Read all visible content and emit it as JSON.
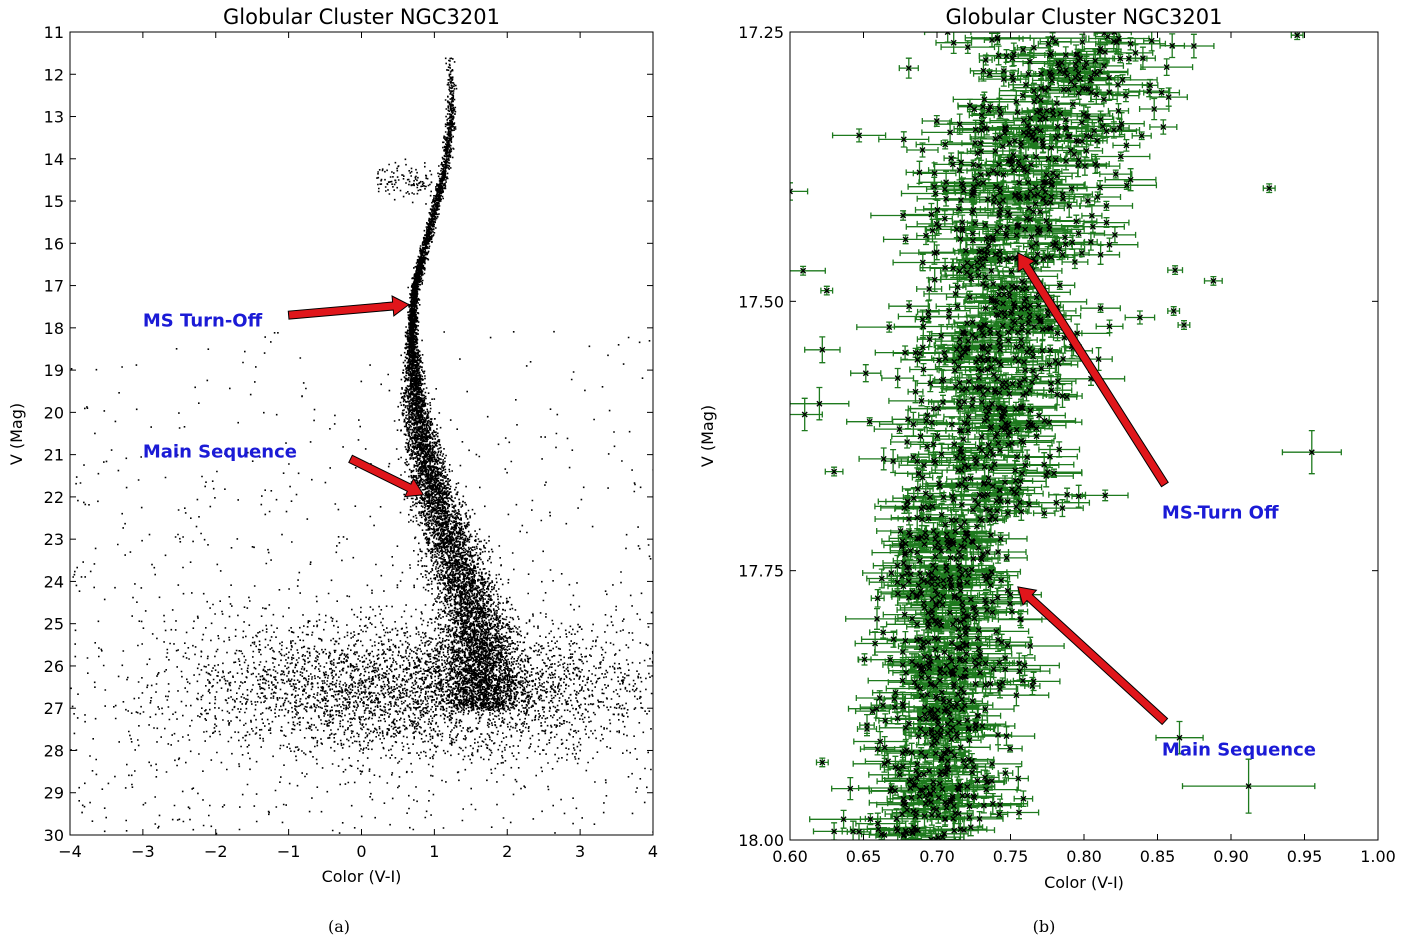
{
  "chart_data": [
    {
      "type": "scatter",
      "title": "Globular Cluster NGC3201",
      "xlabel": "Color (V-I)",
      "ylabel": "V (Mag)",
      "xlim": [
        -4,
        4
      ],
      "ylim": [
        30,
        11
      ],
      "y_inverted": true,
      "x_ticks": [
        "−4",
        "−3",
        "−2",
        "−1",
        "0",
        "1",
        "2",
        "3",
        "4"
      ],
      "y_ticks": [
        "11",
        "12",
        "13",
        "14",
        "15",
        "16",
        "17",
        "18",
        "19",
        "20",
        "21",
        "22",
        "23",
        "24",
        "25",
        "26",
        "27",
        "28",
        "29",
        "30"
      ],
      "marker_color": "#000000",
      "annotations": [
        {
          "text": "MS Turn-Off",
          "label_x": -3.0,
          "label_y": 17.8,
          "arrow_from": [
            -1.0,
            17.7
          ],
          "arrow_to": [
            0.65,
            17.45
          ]
        },
        {
          "text": "Main Sequence",
          "label_x": -3.0,
          "label_y": 20.9,
          "arrow_from": [
            -0.15,
            21.1
          ],
          "arrow_to": [
            0.85,
            21.95
          ]
        }
      ],
      "ridge_line": {
        "x": [
          1.22,
          1.22,
          1.13,
          0.95,
          0.8,
          0.72,
          0.7,
          0.68,
          0.7,
          0.75,
          0.85,
          1.0,
          1.2,
          1.4,
          1.55,
          1.65,
          1.7
        ],
        "y": [
          11.5,
          13.0,
          14.3,
          15.5,
          16.5,
          17.1,
          17.6,
          18.2,
          19.0,
          20.0,
          21.0,
          22.0,
          23.0,
          24.0,
          25.0,
          26.0,
          27.0
        ]
      },
      "horizontal_branch": {
        "x": [
          0.2,
          0.95
        ],
        "y": [
          14.5,
          14.5
        ]
      },
      "field_population": {
        "center_x": 0.8,
        "center_y": 26.5,
        "spread_x": 1.6,
        "spread_y": 0.8
      },
      "caption": "(a)"
    },
    {
      "type": "scatter",
      "title": "Globular Cluster NGC3201",
      "xlabel": "Color (V-I)",
      "ylabel": "V (Mag)",
      "xlim": [
        0.6,
        1.0
      ],
      "ylim": [
        18.0,
        17.25
      ],
      "y_inverted": true,
      "x_ticks": [
        "0.60",
        "0.65",
        "0.70",
        "0.75",
        "0.80",
        "0.85",
        "0.90",
        "0.95",
        "1.00"
      ],
      "y_ticks": [
        "17.25",
        "17.50",
        "17.75",
        "18.00"
      ],
      "marker_color": "#000000",
      "errorbar_color": "#1e7a1e",
      "annotations": [
        {
          "text": "MS-Turn Off",
          "label_x": 0.853,
          "label_y": 17.695,
          "arrow_from": [
            0.855,
            17.67
          ],
          "arrow_to": [
            0.755,
            17.455
          ]
        },
        {
          "text": "Main Sequence",
          "label_x": 0.853,
          "label_y": 17.915,
          "arrow_from": [
            0.855,
            17.89
          ],
          "arrow_to": [
            0.755,
            17.765
          ]
        }
      ],
      "sample_points": [
        {
          "x": 0.955,
          "y": 17.64,
          "xerr": 0.02,
          "yerr": 0.02
        },
        {
          "x": 0.912,
          "y": 17.95,
          "xerr": 0.045,
          "yerr": 0.025
        },
        {
          "x": 0.865,
          "y": 17.905,
          "xerr": 0.016,
          "yerr": 0.015
        },
        {
          "x": 0.926,
          "y": 17.395,
          "xerr": 0.004,
          "yerr": 0.004
        },
        {
          "x": 0.888,
          "y": 17.481,
          "xerr": 0.006,
          "yerr": 0.004
        },
        {
          "x": 0.862,
          "y": 17.471,
          "xerr": 0.005,
          "yerr": 0.004
        },
        {
          "x": 0.861,
          "y": 17.509,
          "xerr": 0.004,
          "yerr": 0.004
        },
        {
          "x": 0.868,
          "y": 17.522,
          "xerr": 0.004,
          "yerr": 0.004
        },
        {
          "x": 0.838,
          "y": 17.515,
          "xerr": 0.01,
          "yerr": 0.006
        },
        {
          "x": 0.647,
          "y": 17.346,
          "xerr": 0.018,
          "yerr": 0.006
        },
        {
          "x": 0.622,
          "y": 17.545,
          "xerr": 0.012,
          "yerr": 0.012
        },
        {
          "x": 0.62,
          "y": 17.595,
          "xerr": 0.02,
          "yerr": 0.015
        },
        {
          "x": 0.61,
          "y": 17.605,
          "xerr": 0.012,
          "yerr": 0.015
        },
        {
          "x": 0.63,
          "y": 17.658,
          "xerr": 0.006,
          "yerr": 0.004
        },
        {
          "x": 0.622,
          "y": 17.928,
          "xerr": 0.004,
          "yerr": 0.004
        },
        {
          "x": 0.63,
          "y": 17.992,
          "xerr": 0.014,
          "yerr": 0.008
        },
        {
          "x": 0.6,
          "y": 17.398,
          "xerr": 0.012,
          "yerr": 0.008
        },
        {
          "x": 0.625,
          "y": 17.49,
          "xerr": 0.004,
          "yerr": 0.004
        },
        {
          "x": 0.945,
          "y": 17.253,
          "xerr": 0.004,
          "yerr": 0.004
        }
      ],
      "caption": "(b)"
    }
  ]
}
